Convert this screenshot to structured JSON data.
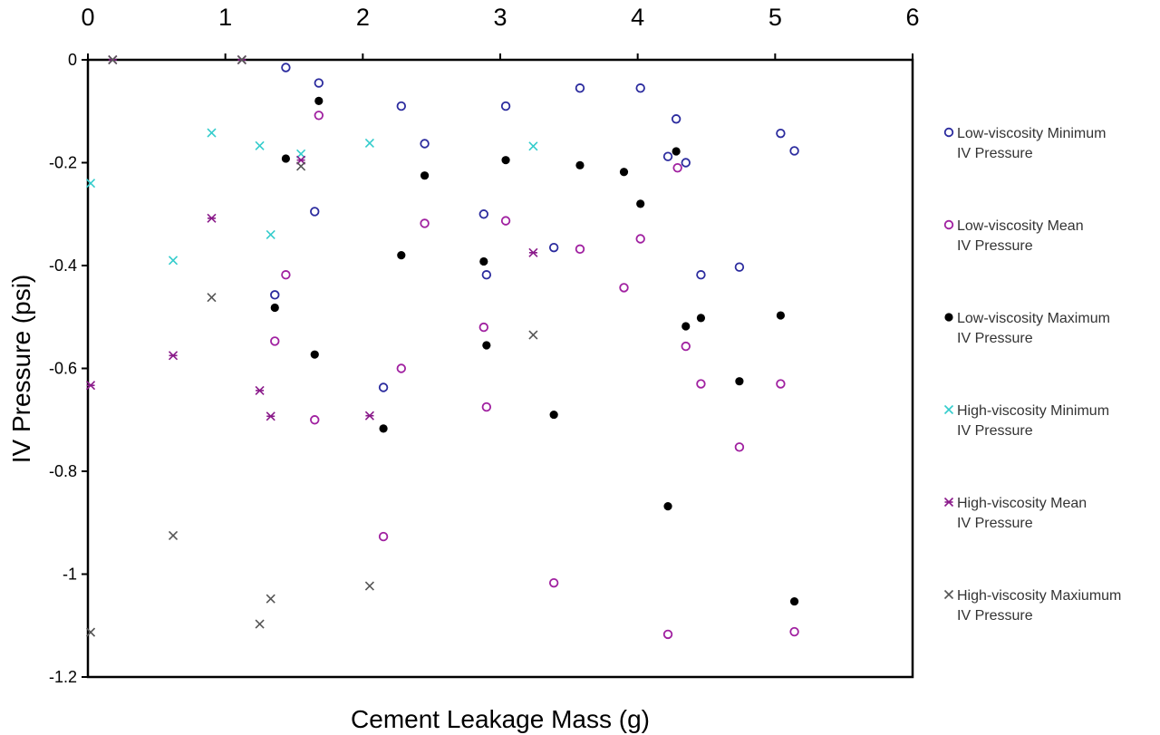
{
  "chart_data": {
    "type": "scatter",
    "title": "",
    "xlabel": "Cement Leakage Mass (g)",
    "ylabel": "IV Pressure (psi)",
    "xlim": [
      0,
      6
    ],
    "ylim": [
      -1.2,
      0
    ],
    "x_axis_position": "top",
    "x_ticks": [
      "0",
      "1",
      "2",
      "3",
      "4",
      "5",
      "6"
    ],
    "y_ticks": [
      "0",
      "-0.2",
      "-0.4",
      "-0.6",
      "-0.8",
      "-1",
      "-1.2"
    ],
    "grid": false,
    "legend_position": "right",
    "series": [
      {
        "name": "Low-viscosity Minimum IV Pressure",
        "marker": "circle-open",
        "color": "#2b2b9e",
        "points": [
          [
            1.44,
            -0.015
          ],
          [
            1.68,
            -0.045
          ],
          [
            2.28,
            -0.09
          ],
          [
            3.04,
            -0.09
          ],
          [
            3.58,
            -0.055
          ],
          [
            4.02,
            -0.055
          ],
          [
            4.28,
            -0.115
          ],
          [
            2.45,
            -0.163
          ],
          [
            4.22,
            -0.188
          ],
          [
            4.35,
            -0.2
          ],
          [
            5.04,
            -0.143
          ],
          [
            5.14,
            -0.177
          ],
          [
            1.65,
            -0.295
          ],
          [
            2.88,
            -0.3
          ],
          [
            2.9,
            -0.418
          ],
          [
            3.39,
            -0.365
          ],
          [
            4.46,
            -0.418
          ],
          [
            4.74,
            -0.403
          ],
          [
            1.36,
            -0.457
          ],
          [
            2.15,
            -0.637
          ]
        ]
      },
      {
        "name": "Low-viscosity Mean IV Pressure",
        "marker": "circle-open",
        "color": "#a020a0",
        "points": [
          [
            1.68,
            -0.108
          ],
          [
            4.29,
            -0.21
          ],
          [
            2.45,
            -0.318
          ],
          [
            3.04,
            -0.313
          ],
          [
            3.58,
            -0.368
          ],
          [
            4.02,
            -0.348
          ],
          [
            1.44,
            -0.418
          ],
          [
            3.9,
            -0.443
          ],
          [
            2.88,
            -0.52
          ],
          [
            1.36,
            -0.547
          ],
          [
            4.35,
            -0.557
          ],
          [
            2.28,
            -0.6
          ],
          [
            4.46,
            -0.63
          ],
          [
            5.04,
            -0.63
          ],
          [
            2.9,
            -0.675
          ],
          [
            1.65,
            -0.7
          ],
          [
            4.74,
            -0.753
          ],
          [
            2.15,
            -0.927
          ],
          [
            3.39,
            -1.017
          ],
          [
            4.22,
            -1.117
          ],
          [
            5.14,
            -1.112
          ]
        ]
      },
      {
        "name": "Low-viscosity Maximum IV Pressure",
        "marker": "circle-filled",
        "color": "#000000",
        "points": [
          [
            1.68,
            -0.08
          ],
          [
            1.44,
            -0.192
          ],
          [
            2.45,
            -0.225
          ],
          [
            3.04,
            -0.195
          ],
          [
            3.58,
            -0.205
          ],
          [
            3.9,
            -0.218
          ],
          [
            4.28,
            -0.178
          ],
          [
            4.02,
            -0.28
          ],
          [
            2.28,
            -0.38
          ],
          [
            2.88,
            -0.392
          ],
          [
            1.36,
            -0.482
          ],
          [
            4.46,
            -0.502
          ],
          [
            4.35,
            -0.518
          ],
          [
            5.04,
            -0.497
          ],
          [
            2.9,
            -0.555
          ],
          [
            1.65,
            -0.573
          ],
          [
            4.74,
            -0.625
          ],
          [
            3.39,
            -0.69
          ],
          [
            2.15,
            -0.717
          ],
          [
            4.22,
            -0.868
          ],
          [
            5.14,
            -1.053
          ]
        ]
      },
      {
        "name": "High-viscosity Minimum IV Pressure",
        "marker": "x",
        "color": "#33cccc",
        "points": [
          [
            0.02,
            -0.24
          ],
          [
            0.9,
            -0.142
          ],
          [
            1.25,
            -0.167
          ],
          [
            1.55,
            -0.183
          ],
          [
            2.05,
            -0.162
          ],
          [
            3.24,
            -0.168
          ],
          [
            1.33,
            -0.34
          ],
          [
            0.62,
            -0.39
          ]
        ]
      },
      {
        "name": "High-viscosity Mean IV Pressure",
        "marker": "star",
        "color": "#8a1a8a",
        "points": [
          [
            0.18,
            0.0
          ],
          [
            1.12,
            0.0
          ],
          [
            1.55,
            -0.195
          ],
          [
            0.9,
            -0.308
          ],
          [
            3.24,
            -0.375
          ],
          [
            0.62,
            -0.575
          ],
          [
            0.02,
            -0.633
          ],
          [
            1.25,
            -0.643
          ],
          [
            1.33,
            -0.693
          ],
          [
            2.05,
            -0.692
          ]
        ]
      },
      {
        "name": "High-viscosity Maxiumum IV Pressure",
        "marker": "x",
        "color": "#555555",
        "points": [
          [
            0.18,
            0.0
          ],
          [
            1.12,
            0.0
          ],
          [
            1.55,
            -0.207
          ],
          [
            0.9,
            -0.462
          ],
          [
            3.24,
            -0.535
          ],
          [
            0.62,
            -0.925
          ],
          [
            1.33,
            -1.048
          ],
          [
            2.05,
            -1.023
          ],
          [
            1.25,
            -1.097
          ],
          [
            0.02,
            -1.113
          ]
        ]
      }
    ]
  },
  "legend": {
    "items": [
      {
        "line1": "Low-viscosity Minimum",
        "line2": "IV Pressure"
      },
      {
        "line1": "Low-viscosity Mean",
        "line2": "IV Pressure"
      },
      {
        "line1": "Low-viscosity Maximum",
        "line2": "IV Pressure"
      },
      {
        "line1": "High-viscosity Minimum",
        "line2": "IV Pressure"
      },
      {
        "line1": "High-viscosity Mean",
        "line2": "IV Pressure"
      },
      {
        "line1": "High-viscosity Maxiumum",
        "line2": "IV Pressure"
      }
    ]
  }
}
